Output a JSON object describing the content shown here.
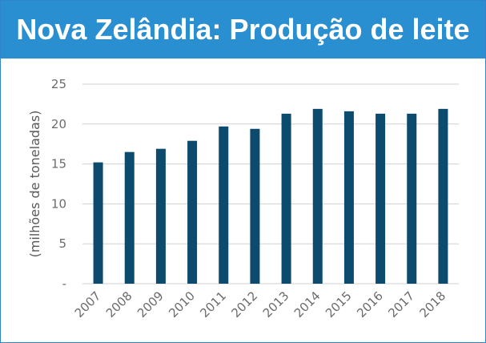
{
  "header": {
    "title": "Nova Zelândia: Produção de leite"
  },
  "chart_data": {
    "type": "bar",
    "title": "Nova Zelândia: Produção de leite",
    "xlabel": "",
    "ylabel": "(milhões de toneladas)",
    "categories": [
      "2007",
      "2008",
      "2009",
      "2010",
      "2011",
      "2012",
      "2013",
      "2014",
      "2015",
      "2016",
      "2017",
      "2018"
    ],
    "values": [
      15.2,
      16.5,
      16.9,
      17.9,
      19.7,
      19.4,
      21.3,
      21.9,
      21.6,
      21.3,
      21.3,
      21.9
    ],
    "ylim": [
      0,
      25
    ],
    "yticks": [
      0,
      5,
      10,
      15,
      20,
      25
    ],
    "ytick_labels": [
      "-",
      "5",
      "10",
      "15",
      "20",
      "25"
    ],
    "grid": true,
    "colors": {
      "bar": "#0c4a6e",
      "grid": "#d0d0d0",
      "header": "#2a8fd1"
    }
  }
}
